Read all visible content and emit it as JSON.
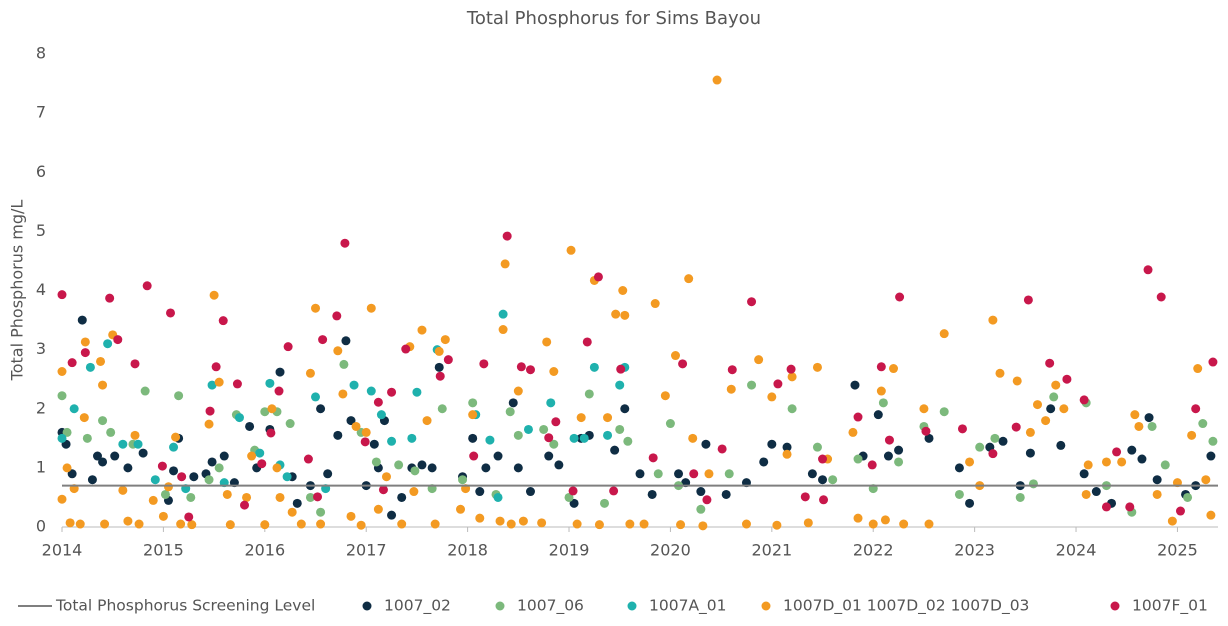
{
  "chart_data": {
    "type": "scatter",
    "title": "Total Phosphorus for Sims Bayou",
    "y_label": "Total Phosphorus mg/L",
    "xlim": [
      2014,
      2025.4
    ],
    "xticks": [
      2014,
      2015,
      2016,
      2017,
      2018,
      2019,
      2020,
      2021,
      2022,
      2023,
      2024,
      2025
    ],
    "ylim": [
      0,
      8
    ],
    "yticks": [
      0,
      1,
      2,
      3,
      4,
      5,
      6,
      7,
      8
    ],
    "grid": false,
    "reference_line": {
      "name": "Total Phosphorus Screening Level",
      "value": 0.7,
      "color": "#7f7f7f"
    },
    "series": [
      {
        "name": "1007_02",
        "color": "#0f2d44",
        "x": [
          2014.0,
          2014.04,
          2014.1,
          2014.2,
          2014.3,
          2014.35,
          2014.4,
          2014.52,
          2014.65,
          2014.8,
          2015.05,
          2015.1,
          2015.15,
          2015.3,
          2015.42,
          2015.48,
          2015.6,
          2015.7,
          2015.85,
          2015.92,
          2016.05,
          2016.15,
          2016.27,
          2016.32,
          2016.45,
          2016.55,
          2016.62,
          2016.72,
          2016.8,
          2016.85,
          2017.0,
          2017.08,
          2017.12,
          2017.18,
          2017.25,
          2017.35,
          2017.45,
          2017.55,
          2017.65,
          2017.72,
          2017.95,
          2018.05,
          2018.12,
          2018.18,
          2018.3,
          2018.45,
          2018.5,
          2018.62,
          2018.8,
          2018.9,
          2019.05,
          2019.12,
          2019.2,
          2019.45,
          2019.55,
          2019.7,
          2019.82,
          2020.08,
          2020.15,
          2020.3,
          2020.35,
          2020.55,
          2020.75,
          2020.92,
          2021.0,
          2021.15,
          2021.4,
          2021.5,
          2021.82,
          2021.9,
          2022.05,
          2022.15,
          2022.25,
          2022.55,
          2022.85,
          2022.95,
          2023.15,
          2023.28,
          2023.45,
          2023.55,
          2023.75,
          2023.85,
          2024.08,
          2024.2,
          2024.35,
          2024.55,
          2024.65,
          2024.72,
          2024.8,
          2025.08,
          2025.18,
          2025.33
        ],
        "values": [
          1.6,
          1.4,
          0.9,
          3.5,
          0.8,
          1.2,
          1.1,
          1.2,
          1.0,
          1.25,
          0.45,
          0.95,
          1.5,
          0.85,
          0.9,
          1.1,
          1.2,
          0.75,
          1.7,
          1.0,
          1.65,
          2.62,
          0.85,
          0.4,
          0.7,
          2.0,
          0.9,
          1.55,
          3.15,
          1.8,
          0.7,
          1.4,
          1.0,
          1.8,
          0.2,
          0.5,
          1.0,
          1.05,
          1.0,
          2.7,
          0.85,
          1.5,
          0.6,
          1.0,
          1.2,
          2.1,
          1.0,
          0.6,
          1.2,
          1.05,
          0.4,
          1.5,
          1.55,
          1.3,
          2.0,
          0.9,
          0.55,
          0.9,
          0.75,
          0.6,
          1.4,
          0.55,
          0.75,
          1.1,
          1.4,
          1.35,
          0.9,
          0.8,
          2.4,
          1.2,
          1.9,
          1.2,
          1.3,
          1.5,
          1.0,
          0.4,
          1.35,
          1.45,
          0.7,
          1.25,
          2.0,
          1.38,
          0.9,
          0.6,
          0.4,
          1.3,
          1.15,
          1.85,
          0.8,
          0.55,
          0.7,
          1.2
        ]
      },
      {
        "name": "1007_06",
        "color": "#7cb97c",
        "x": [
          2014.0,
          2014.05,
          2014.25,
          2014.4,
          2014.48,
          2014.7,
          2014.82,
          2015.02,
          2015.15,
          2015.27,
          2015.45,
          2015.55,
          2015.72,
          2015.9,
          2016.0,
          2016.12,
          2016.25,
          2016.45,
          2016.55,
          2016.78,
          2016.95,
          2017.1,
          2017.32,
          2017.48,
          2017.65,
          2017.75,
          2017.95,
          2018.05,
          2018.28,
          2018.42,
          2018.5,
          2018.75,
          2018.85,
          2019.0,
          2019.2,
          2019.35,
          2019.5,
          2019.58,
          2019.88,
          2020.0,
          2020.08,
          2020.3,
          2020.58,
          2020.8,
          2021.2,
          2021.45,
          2021.6,
          2021.85,
          2022.0,
          2022.1,
          2022.25,
          2022.5,
          2022.7,
          2022.85,
          2023.05,
          2023.2,
          2023.45,
          2023.58,
          2023.78,
          2024.1,
          2024.3,
          2024.55,
          2024.75,
          2024.88,
          2025.1,
          2025.25,
          2025.35
        ],
        "values": [
          2.22,
          1.6,
          1.5,
          1.8,
          1.6,
          1.4,
          2.3,
          0.55,
          2.22,
          0.5,
          0.8,
          1.0,
          1.9,
          1.3,
          1.95,
          1.95,
          1.75,
          0.5,
          0.25,
          2.75,
          1.6,
          1.1,
          1.05,
          0.95,
          0.65,
          2.0,
          0.8,
          2.1,
          0.55,
          1.95,
          1.55,
          1.65,
          1.4,
          0.5,
          2.25,
          0.4,
          1.65,
          1.45,
          0.9,
          1.75,
          0.7,
          0.3,
          0.9,
          2.4,
          2.0,
          1.35,
          0.8,
          1.15,
          0.65,
          2.1,
          1.1,
          1.7,
          1.95,
          0.55,
          1.35,
          1.5,
          0.5,
          0.73,
          2.2,
          2.1,
          0.7,
          0.25,
          1.7,
          1.05,
          0.5,
          1.75,
          1.45
        ]
      },
      {
        "name": "1007A_01",
        "color": "#1fb1ad",
        "x": [
          2014.0,
          2014.12,
          2014.28,
          2014.45,
          2014.6,
          2014.75,
          2014.92,
          2015.1,
          2015.22,
          2015.48,
          2015.6,
          2015.75,
          2015.95,
          2016.05,
          2016.15,
          2016.22,
          2016.5,
          2016.6,
          2016.88,
          2017.05,
          2017.15,
          2017.25,
          2017.45,
          2017.5,
          2017.7,
          2018.08,
          2018.22,
          2018.3,
          2018.35,
          2018.6,
          2018.82,
          2019.05,
          2019.15,
          2019.25,
          2019.38,
          2019.5,
          2019.55
        ],
        "values": [
          1.5,
          2.0,
          2.7,
          3.1,
          1.4,
          1.4,
          0.8,
          1.35,
          0.65,
          2.4,
          0.75,
          1.85,
          1.25,
          2.43,
          1.05,
          0.85,
          2.2,
          0.65,
          2.4,
          2.3,
          1.9,
          1.45,
          1.5,
          2.28,
          3.0,
          1.9,
          1.47,
          0.5,
          3.6,
          1.65,
          2.1,
          1.5,
          1.5,
          2.7,
          1.55,
          2.4,
          2.7
        ]
      },
      {
        "name": "1007D_01 1007D_02 1007D_03",
        "color": "#f39a22",
        "x": [
          2014.0,
          2014.0,
          2014.05,
          2014.08,
          2014.12,
          2014.18,
          2014.22,
          2014.23,
          2014.38,
          2014.4,
          2014.42,
          2014.5,
          2014.6,
          2014.65,
          2014.72,
          2014.76,
          2014.9,
          2015.0,
          2015.05,
          2015.12,
          2015.17,
          2015.28,
          2015.45,
          2015.5,
          2015.55,
          2015.63,
          2015.66,
          2015.82,
          2015.87,
          2016.0,
          2016.07,
          2016.12,
          2016.15,
          2016.27,
          2016.36,
          2016.45,
          2016.5,
          2016.55,
          2016.72,
          2016.77,
          2016.85,
          2016.9,
          2016.95,
          2017.0,
          2017.05,
          2017.12,
          2017.2,
          2017.35,
          2017.43,
          2017.47,
          2017.55,
          2017.6,
          2017.68,
          2017.72,
          2017.78,
          2017.93,
          2017.98,
          2018.05,
          2018.12,
          2018.32,
          2018.35,
          2018.37,
          2018.43,
          2018.5,
          2018.55,
          2018.73,
          2018.78,
          2018.85,
          2019.02,
          2019.08,
          2019.12,
          2019.25,
          2019.3,
          2019.38,
          2019.46,
          2019.53,
          2019.55,
          2019.6,
          2019.74,
          2019.85,
          2019.95,
          2020.05,
          2020.1,
          2020.18,
          2020.22,
          2020.32,
          2020.38,
          2020.46,
          2020.6,
          2020.75,
          2020.87,
          2021.0,
          2021.05,
          2021.15,
          2021.2,
          2021.36,
          2021.45,
          2021.55,
          2021.8,
          2021.85,
          2022.0,
          2022.08,
          2022.12,
          2022.2,
          2022.3,
          2022.5,
          2022.55,
          2022.7,
          2022.95,
          2023.05,
          2023.18,
          2023.25,
          2023.42,
          2023.55,
          2023.62,
          2023.7,
          2023.8,
          2023.88,
          2024.1,
          2024.12,
          2024.3,
          2024.45,
          2024.58,
          2024.62,
          2024.8,
          2024.95,
          2025.0,
          2025.14,
          2025.2,
          2025.28,
          2025.33
        ],
        "values": [
          2.63,
          0.47,
          1.0,
          0.07,
          0.65,
          0.05,
          1.85,
          3.13,
          2.8,
          2.4,
          0.05,
          3.25,
          0.62,
          0.1,
          1.55,
          0.05,
          0.45,
          0.18,
          0.68,
          1.52,
          0.05,
          0.04,
          1.74,
          3.92,
          2.45,
          0.55,
          0.04,
          0.5,
          1.2,
          0.04,
          2.0,
          1.0,
          0.5,
          0.25,
          0.05,
          2.6,
          3.7,
          0.05,
          2.98,
          2.25,
          0.18,
          1.7,
          0.03,
          1.6,
          3.7,
          0.3,
          0.85,
          0.05,
          3.05,
          0.6,
          3.33,
          1.8,
          0.05,
          2.97,
          3.17,
          0.3,
          0.65,
          1.9,
          0.15,
          0.1,
          3.34,
          4.45,
          0.05,
          2.3,
          0.1,
          0.07,
          3.13,
          2.63,
          4.68,
          0.05,
          1.85,
          4.17,
          0.04,
          1.85,
          3.6,
          4.0,
          3.58,
          0.05,
          0.05,
          3.78,
          2.22,
          2.9,
          0.04,
          4.2,
          1.5,
          0.02,
          0.9,
          7.56,
          2.33,
          0.05,
          2.83,
          2.2,
          0.03,
          1.23,
          2.54,
          0.07,
          2.7,
          1.15,
          1.6,
          0.15,
          0.05,
          2.3,
          0.12,
          2.68,
          0.05,
          2.0,
          0.05,
          3.27,
          1.1,
          0.7,
          3.5,
          2.6,
          2.47,
          1.6,
          2.07,
          1.8,
          2.4,
          2.0,
          0.55,
          1.05,
          1.1,
          1.1,
          1.9,
          1.7,
          0.55,
          0.1,
          0.75,
          1.55,
          2.68,
          0.8,
          0.2
        ]
      },
      {
        "name": "1007F_01",
        "color": "#c8174b",
        "x": [
          2014.0,
          2014.1,
          2014.23,
          2014.47,
          2014.55,
          2014.72,
          2014.84,
          2014.99,
          2015.07,
          2015.18,
          2015.25,
          2015.46,
          2015.52,
          2015.59,
          2015.73,
          2015.8,
          2015.97,
          2016.06,
          2016.14,
          2016.23,
          2016.43,
          2016.52,
          2016.57,
          2016.71,
          2016.79,
          2016.99,
          2017.12,
          2017.17,
          2017.25,
          2017.39,
          2017.73,
          2017.81,
          2018.06,
          2018.16,
          2018.39,
          2018.53,
          2018.62,
          2018.8,
          2018.87,
          2019.04,
          2019.18,
          2019.29,
          2019.44,
          2019.51,
          2019.83,
          2020.12,
          2020.23,
          2020.36,
          2020.51,
          2020.61,
          2020.8,
          2021.06,
          2021.19,
          2021.33,
          2021.5,
          2021.51,
          2021.85,
          2021.99,
          2022.08,
          2022.16,
          2022.26,
          2022.52,
          2022.88,
          2023.18,
          2023.41,
          2023.53,
          2023.74,
          2023.91,
          2024.08,
          2024.3,
          2024.4,
          2024.53,
          2024.71,
          2024.84,
          2025.03,
          2025.18,
          2025.35
        ],
        "values": [
          3.93,
          2.78,
          2.95,
          3.87,
          3.17,
          2.76,
          4.08,
          1.03,
          3.62,
          0.85,
          0.17,
          1.96,
          2.71,
          3.49,
          2.42,
          0.37,
          1.07,
          1.59,
          2.3,
          3.05,
          1.15,
          0.51,
          3.17,
          3.57,
          4.8,
          1.44,
          2.11,
          0.63,
          2.28,
          3.01,
          2.55,
          2.83,
          1.2,
          2.76,
          4.92,
          2.71,
          2.66,
          1.51,
          1.78,
          0.61,
          3.13,
          4.23,
          0.61,
          2.67,
          1.17,
          2.76,
          0.9,
          0.46,
          1.32,
          2.66,
          3.81,
          2.42,
          2.67,
          0.51,
          1.15,
          0.46,
          1.86,
          1.05,
          2.71,
          1.47,
          3.89,
          1.62,
          1.66,
          1.24,
          1.69,
          3.84,
          2.77,
          2.5,
          2.15,
          0.34,
          1.27,
          0.34,
          4.35,
          3.89,
          0.27,
          2.0,
          2.79
        ]
      }
    ]
  }
}
